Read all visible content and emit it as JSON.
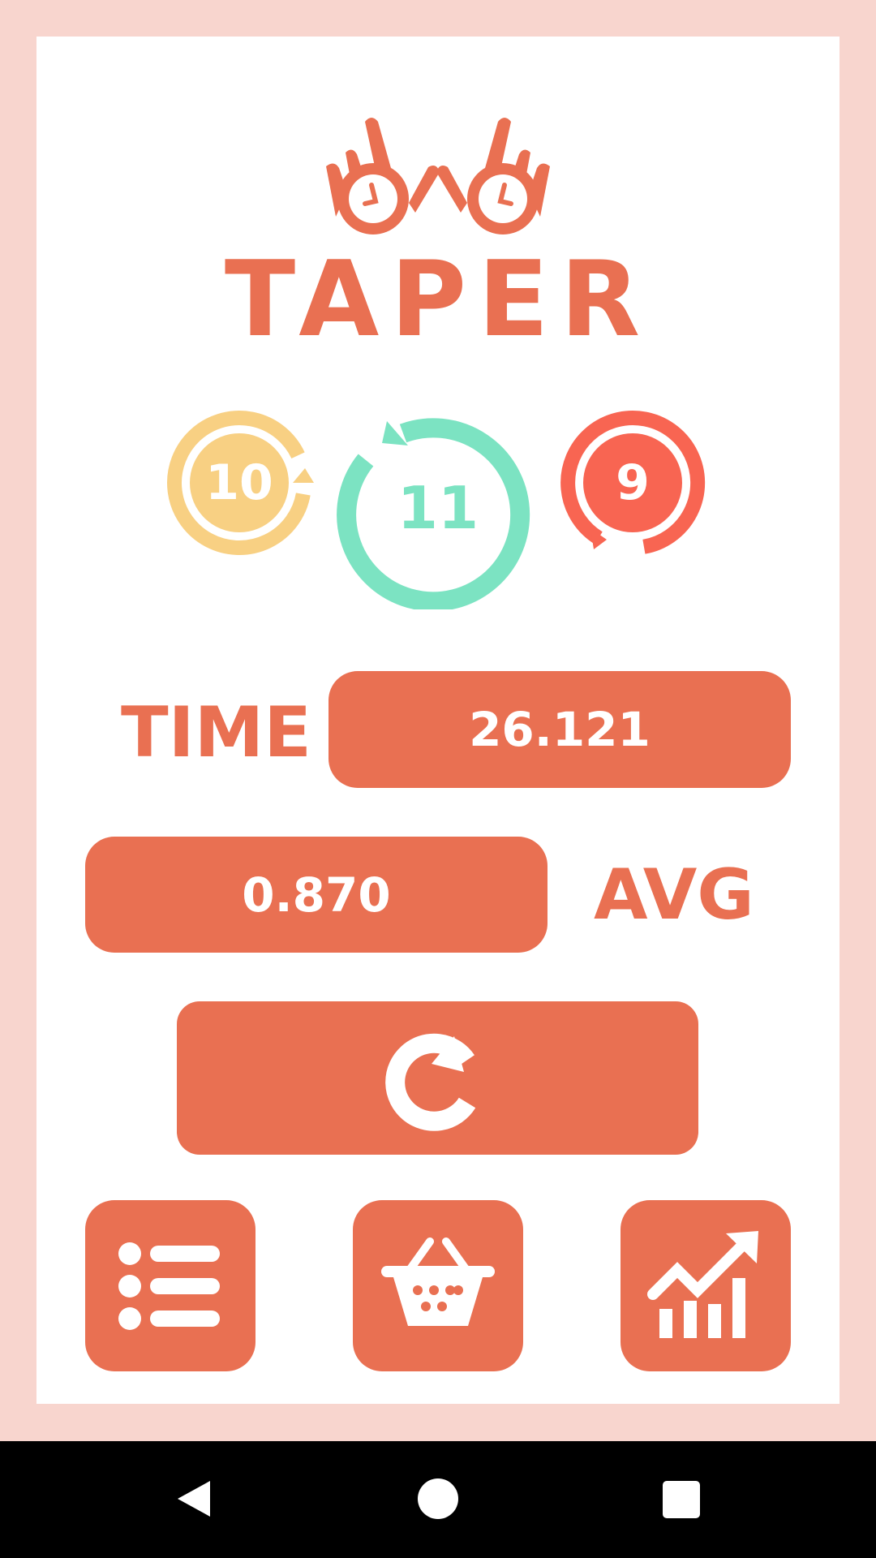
{
  "app": {
    "title": "TAPER",
    "logo": "two-hands-with-clocks-logo"
  },
  "counters": [
    {
      "value": "10",
      "color": "#F8D083",
      "icon": "rotate-arrow"
    },
    {
      "value": "11",
      "color": "#7CE3C2",
      "icon": "rotate-arrow"
    },
    {
      "value": "9",
      "color": "#F86552",
      "icon": "rotate-arrow"
    }
  ],
  "time": {
    "label": "TIME",
    "value": "26.121"
  },
  "avg": {
    "label": "AVG",
    "value": "0.870"
  },
  "buttons": {
    "reset": "reset-icon",
    "list": "list-icon",
    "shop": "basket-icon",
    "stats": "chart-icon"
  },
  "colors": {
    "accent": "#E97052",
    "frame": "#F8D5CE"
  }
}
